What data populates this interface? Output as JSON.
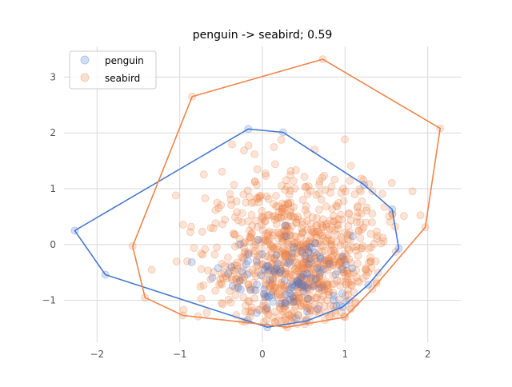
{
  "chart_data": {
    "type": "scatter",
    "title": "penguin -> seabird; 0.59",
    "xlabel": "",
    "ylabel": "",
    "xlim": [
      -2.4,
      2.4
    ],
    "ylim": [
      -1.75,
      3.55
    ],
    "x_ticks": [
      -2,
      -1,
      0,
      1,
      2
    ],
    "y_ticks": [
      -1,
      0,
      1,
      2,
      3
    ],
    "grid": true,
    "legend_position": "top-left",
    "series": [
      {
        "name": "penguin",
        "color": "#4878cf",
        "hull": [
          [
            -2.27,
            0.25
          ],
          [
            -0.17,
            2.07
          ],
          [
            0.25,
            2.01
          ],
          [
            1.23,
            1.07
          ],
          [
            1.57,
            0.63
          ],
          [
            1.65,
            -0.07
          ],
          [
            1.28,
            -0.72
          ],
          [
            0.97,
            -1.12
          ],
          [
            0.53,
            -1.37
          ],
          [
            0.06,
            -1.48
          ],
          [
            -1.9,
            -0.54
          ]
        ],
        "cluster": {
          "cx": 0.35,
          "cy": -0.65,
          "sx": 0.4,
          "sy": 0.38,
          "count": 110
        }
      },
      {
        "name": "seabird",
        "color": "#ee854a",
        "hull": [
          [
            -0.85,
            2.65
          ],
          [
            0.73,
            3.32
          ],
          [
            2.15,
            2.08
          ],
          [
            1.97,
            0.31
          ],
          [
            1.33,
            -0.8
          ],
          [
            1.0,
            -1.3
          ],
          [
            0.3,
            -1.48
          ],
          [
            -0.96,
            -1.27
          ],
          [
            -1.42,
            -0.95
          ],
          [
            -1.57,
            -0.03
          ]
        ],
        "cluster": {
          "cx": 0.45,
          "cy": -0.35,
          "sx": 0.55,
          "sy": 0.75,
          "count": 900
        }
      }
    ]
  }
}
